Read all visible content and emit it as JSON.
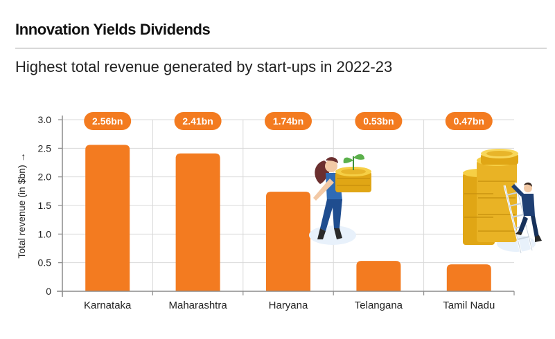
{
  "header": {
    "title": "Innovation Yields Dividends",
    "subtitle": "Highest total revenue generated by start-ups in 2022-23"
  },
  "colors": {
    "bar": "#f37b20",
    "grid": "#d9d9d9",
    "axis": "#8c8c8c"
  },
  "chart_data": {
    "type": "bar",
    "categories": [
      "Karnataka",
      "Maharashtra",
      "Haryana",
      "Telangana",
      "Tamil Nadu"
    ],
    "values": [
      2.56,
      2.41,
      1.74,
      0.53,
      0.47
    ],
    "data_labels": [
      "2.56bn",
      "2.41bn",
      "1.74bn",
      "0.53bn",
      "0.47bn"
    ],
    "ylabel": "Total revenue (in $bn) →",
    "xlabel": "",
    "ylim": [
      0,
      3.0
    ],
    "yticks": [
      "0",
      "0.5",
      "1.0",
      "1.5",
      "2.0",
      "2.5",
      "3.0"
    ],
    "grid": true,
    "illustrations": [
      "woman-carrying-coins-with-plant",
      "man-climbing-ladder-on-coin-stacks"
    ]
  }
}
